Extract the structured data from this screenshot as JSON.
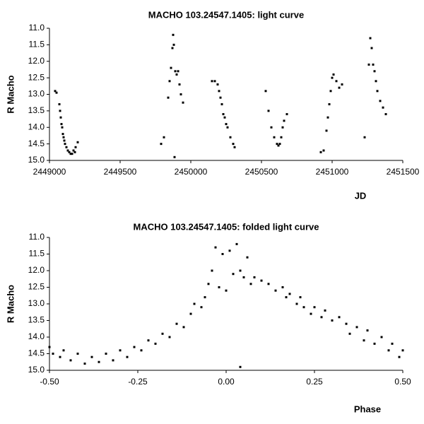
{
  "chart_data": [
    {
      "type": "scatter",
      "title": "MACHO 103.24547.1405: light curve",
      "x_label": "JD",
      "y_label": "R Macho",
      "xlim": [
        2449000,
        2451500
      ],
      "xticks": [
        2449000,
        2449500,
        2450000,
        2450500,
        2451000,
        2451500
      ],
      "ylim": [
        11,
        15
      ],
      "y_inverted": true,
      "yticks": [
        {
          "value": 11,
          "label": "11.0"
        },
        11.5,
        {
          "value": 12,
          "label": "12.0"
        },
        12.5,
        {
          "value": 13,
          "label": "13.0"
        },
        13.5,
        {
          "value": 14,
          "label": "14.0"
        },
        14.5,
        {
          "value": 15,
          "label": "15.0"
        }
      ],
      "grid": false,
      "color": "#000000",
      "x": [
        2449040,
        2449050,
        2449070,
        2449075,
        2449080,
        2449085,
        2449090,
        2449095,
        2449100,
        2449105,
        2449110,
        2449120,
        2449130,
        2449140,
        2449150,
        2449160,
        2449170,
        2449180,
        2449185,
        2449200,
        2449790,
        2449810,
        2449840,
        2449850,
        2449860,
        2449870,
        2449875,
        2449880,
        2449885,
        2449890,
        2449900,
        2449910,
        2449920,
        2449930,
        2449945,
        2450150,
        2450170,
        2450190,
        2450200,
        2450210,
        2450220,
        2450230,
        2450240,
        2450250,
        2450260,
        2450280,
        2450300,
        2450310,
        2450530,
        2450550,
        2450570,
        2450590,
        2450610,
        2450620,
        2450630,
        2450640,
        2450650,
        2450660,
        2450680,
        2450920,
        2450940,
        2450960,
        2450970,
        2450980,
        2450990,
        2451000,
        2451010,
        2451030,
        2451050,
        2451070,
        2451230,
        2451260,
        2451270,
        2451280,
        2451290,
        2451300,
        2451310,
        2451320,
        2451340,
        2451360,
        2451380
      ],
      "values": [
        12.9,
        12.95,
        13.3,
        13.5,
        13.7,
        13.9,
        14.0,
        14.2,
        14.3,
        14.4,
        14.5,
        14.6,
        14.7,
        14.75,
        14.8,
        14.8,
        14.7,
        14.75,
        14.6,
        14.45,
        14.5,
        14.3,
        13.1,
        12.6,
        12.2,
        11.6,
        11.2,
        11.5,
        14.9,
        12.3,
        12.4,
        12.3,
        12.7,
        13.0,
        13.25,
        12.6,
        12.6,
        12.7,
        12.9,
        13.1,
        13.3,
        13.6,
        13.7,
        13.9,
        14.0,
        14.3,
        14.5,
        14.6,
        12.9,
        13.5,
        14.0,
        14.3,
        14.5,
        14.55,
        14.5,
        14.3,
        14.0,
        13.8,
        13.6,
        14.75,
        14.7,
        14.1,
        13.7,
        13.3,
        12.9,
        12.5,
        12.4,
        12.6,
        12.8,
        12.7,
        14.3,
        12.1,
        11.3,
        11.6,
        12.1,
        12.3,
        12.6,
        12.9,
        13.2,
        13.4,
        13.6
      ]
    },
    {
      "type": "scatter",
      "title": "MACHO 103.24547.1405: folded light curve",
      "x_label": "Phase",
      "y_label": "R Macho",
      "xlim": [
        -0.5,
        0.5
      ],
      "xticks": [
        {
          "value": -0.5,
          "label": "-0.50"
        },
        {
          "value": -0.25,
          "label": "-0.25"
        },
        {
          "value": 0,
          "label": "0.00"
        },
        {
          "value": 0.25,
          "label": "0.25"
        },
        {
          "value": 0.5,
          "label": "0.50"
        }
      ],
      "ylim": [
        11,
        15
      ],
      "y_inverted": true,
      "yticks": [
        {
          "value": 11,
          "label": "11.0"
        },
        11.5,
        {
          "value": 12,
          "label": "12.0"
        },
        12.5,
        {
          "value": 13,
          "label": "13.0"
        },
        13.5,
        {
          "value": 14,
          "label": "14.0"
        },
        14.5,
        {
          "value": 15,
          "label": "15.0"
        }
      ],
      "grid": false,
      "color": "#000000",
      "x": [
        -0.5,
        -0.49,
        -0.47,
        -0.46,
        -0.44,
        -0.42,
        -0.4,
        -0.38,
        -0.36,
        -0.34,
        -0.32,
        -0.3,
        -0.28,
        -0.26,
        -0.24,
        -0.22,
        -0.2,
        -0.18,
        -0.16,
        -0.14,
        -0.12,
        -0.1,
        -0.09,
        -0.07,
        -0.06,
        -0.05,
        -0.04,
        -0.03,
        -0.02,
        -0.01,
        0,
        0.01,
        0.02,
        0.03,
        0.04,
        0.04,
        0.05,
        0.06,
        0.07,
        0.08,
        0.1,
        0.12,
        0.14,
        0.16,
        0.17,
        0.18,
        0.2,
        0.21,
        0.22,
        0.24,
        0.25,
        0.27,
        0.28,
        0.3,
        0.32,
        0.34,
        0.35,
        0.37,
        0.39,
        0.4,
        0.42,
        0.44,
        0.46,
        0.47,
        0.49,
        0.5
      ],
      "values": [
        14.3,
        14.5,
        14.6,
        14.4,
        14.7,
        14.5,
        14.8,
        14.6,
        14.75,
        14.5,
        14.7,
        14.4,
        14.6,
        14.3,
        14.4,
        14.1,
        14.2,
        13.9,
        14.0,
        13.6,
        13.7,
        13.3,
        13.0,
        13.1,
        12.8,
        12.4,
        12.0,
        11.3,
        12.5,
        11.5,
        12.6,
        11.4,
        12.1,
        11.2,
        14.9,
        12.0,
        12.2,
        11.6,
        12.4,
        12.2,
        12.3,
        12.4,
        12.6,
        12.5,
        12.8,
        12.7,
        13.0,
        12.8,
        13.1,
        13.3,
        13.1,
        13.4,
        13.2,
        13.5,
        13.4,
        13.6,
        13.9,
        13.7,
        14.1,
        13.8,
        14.2,
        14.0,
        14.4,
        14.2,
        14.6,
        14.4
      ]
    }
  ]
}
